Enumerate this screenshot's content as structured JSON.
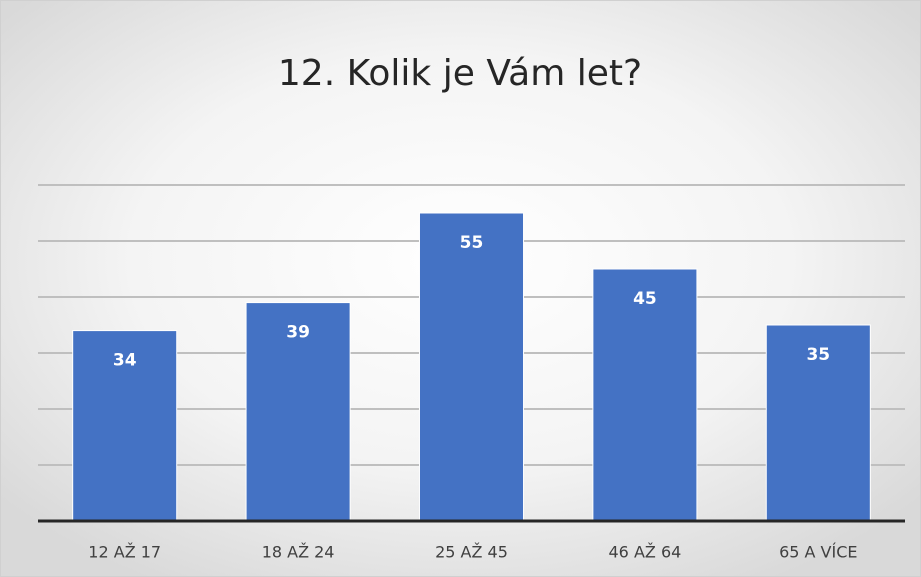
{
  "chart_data": {
    "type": "bar",
    "title": "12. Kolik je Vám let?",
    "categories": [
      "12 AŽ 17",
      "18 AŽ 24",
      "25 AŽ 45",
      "46 AŽ 64",
      "65 A VÍCE"
    ],
    "values": [
      34,
      39,
      55,
      45,
      35
    ],
    "color": "#4472c4",
    "ylim": [
      0,
      60
    ],
    "yticks": [
      0,
      10,
      20,
      30,
      40,
      50,
      60
    ],
    "grid": true
  }
}
